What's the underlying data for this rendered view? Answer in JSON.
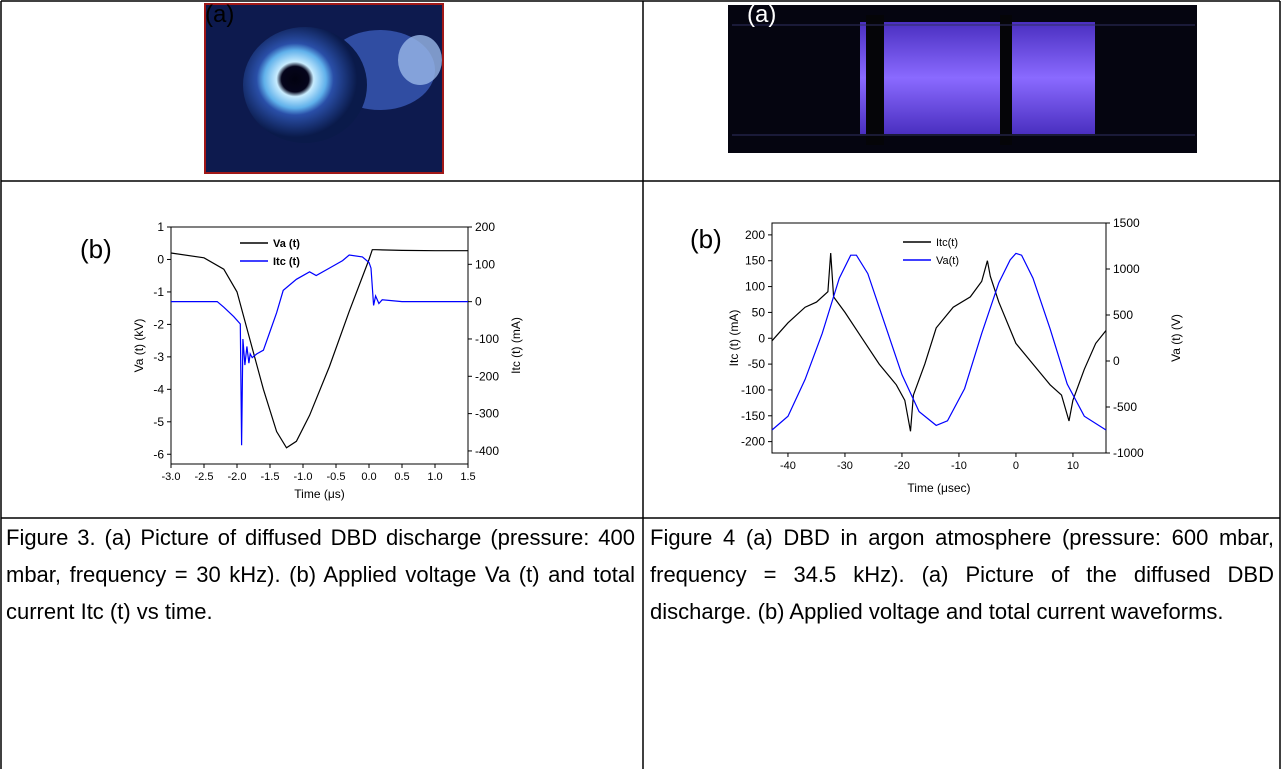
{
  "table": {
    "photo_labels": [
      "(a)",
      "(a)"
    ],
    "plot_labels": [
      "(b)",
      "(b)"
    ],
    "captions": [
      "Figure 3. (a) Picture of diffused DBD discharge (pressure: 400 mbar, frequency = 30 kHz). (b) Applied voltage Va (t) and total current Itc (t) vs time.",
      "Figure 4 (a) DBD in argon atmosphere (pressure: 600 mbar, frequency = 34.5 kHz). (a) Picture of the diffused DBD discharge. (b) Applied voltage and total current waveforms."
    ]
  },
  "chart_data": [
    {
      "type": "line",
      "x_label": "Time (μs)",
      "y_label": "Va (t) (kV)",
      "y2_label": "Itc (t) (mA)",
      "xlim": [
        -3,
        1.5
      ],
      "xticks": [
        {
          "value": -3,
          "label": "-3.0"
        },
        -2.5,
        {
          "value": -2,
          "label": "-2.0"
        },
        -1.5,
        {
          "value": -1,
          "label": "-1.0"
        },
        -0.5,
        {
          "value": 0,
          "label": "0.0"
        },
        0.5,
        {
          "value": 1,
          "label": "1.0"
        },
        1.5
      ],
      "ylim": [
        -6.3,
        1
      ],
      "yticks": [
        -6,
        -5,
        -4,
        -3,
        -2,
        -1,
        0,
        1
      ],
      "y2lim": [
        -435,
        200
      ],
      "y2ticks": [
        -400,
        -300,
        -200,
        -100,
        0,
        100,
        200
      ],
      "series": [
        {
          "name": "Va (t)",
          "color": "#000000",
          "x": [
            -3,
            -2.5,
            -2.2,
            -2,
            -1.8,
            -1.6,
            -1.4,
            -1.25,
            -1.1,
            -0.9,
            -0.6,
            -0.3,
            0,
            0.05,
            0.1,
            0.5,
            1,
            1.5
          ],
          "values": [
            0.2,
            0.05,
            -0.3,
            -1,
            -2.5,
            -4,
            -5.3,
            -5.8,
            -5.6,
            -4.8,
            -3.3,
            -1.6,
            0,
            0.3,
            0.3,
            0.28,
            0.27,
            0.27
          ]
        },
        {
          "name": "Itc (t)",
          "color": "#0000ff",
          "axis": "y2",
          "x": [
            -3,
            -2.3,
            -2.2,
            -2.05,
            -1.95,
            -1.93,
            -1.91,
            -1.88,
            -1.85,
            -1.82,
            -1.8,
            -1.77,
            -1.7,
            -1.6,
            -1.5,
            -1.4,
            -1.3,
            -1.1,
            -0.9,
            -0.8,
            -0.6,
            -0.4,
            -0.3,
            -0.1,
            0,
            0.03,
            0.07,
            0.1,
            0.15,
            0.2,
            0.5,
            1,
            1.5
          ],
          "values": [
            0,
            0,
            -15,
            -40,
            -60,
            -385,
            -100,
            -170,
            -120,
            -165,
            -140,
            -150,
            -140,
            -130,
            -80,
            -30,
            30,
            60,
            80,
            70,
            90,
            110,
            125,
            120,
            105,
            90,
            -10,
            15,
            -5,
            5,
            0,
            0,
            0
          ]
        }
      ]
    },
    {
      "type": "line",
      "x_label": "Time (μsec)",
      "y_label": "Itc (t) (mA)",
      "y2_label": "Va (t) (V)",
      "xlim": [
        -42.8,
        15.8
      ],
      "xticks": [
        -40,
        -30,
        -20,
        -10,
        0,
        10
      ],
      "ylim": [
        -222,
        223
      ],
      "yticks": [
        -200,
        -150,
        -100,
        -50,
        0,
        50,
        100,
        150,
        200
      ],
      "y2lim": [
        -1000,
        1500
      ],
      "y2ticks": [
        -1000,
        -500,
        0,
        500,
        1000,
        1500
      ],
      "series": [
        {
          "name": "Itc(t)",
          "color": "#000000",
          "x": [
            -42.8,
            -40,
            -37,
            -35,
            -33,
            -32.5,
            -32,
            -30,
            -27,
            -24,
            -21,
            -19.5,
            -18.5,
            -18,
            -16,
            -14,
            -11,
            -8,
            -6,
            -5,
            -4.5,
            -3,
            0,
            3,
            6,
            8,
            9.3,
            10,
            12,
            14,
            15.8
          ],
          "values": [
            -5,
            30,
            60,
            70,
            90,
            165,
            80,
            50,
            0,
            -50,
            -90,
            -120,
            -180,
            -110,
            -50,
            20,
            60,
            80,
            110,
            150,
            120,
            70,
            -10,
            -50,
            -90,
            -110,
            -160,
            -120,
            -60,
            -10,
            15
          ]
        },
        {
          "name": "Va(t)",
          "color": "#0000ff",
          "axis": "y2",
          "x": [
            -42.8,
            -40,
            -37,
            -34,
            -31,
            -29,
            -28,
            -26,
            -23,
            -20,
            -17,
            -14,
            -12,
            -9,
            -6,
            -3,
            -1,
            0,
            1,
            3,
            6,
            9,
            12,
            15.8
          ],
          "values": [
            -750,
            -600,
            -200,
            300,
            900,
            1150,
            1150,
            950,
            400,
            -150,
            -550,
            -700,
            -650,
            -300,
            300,
            850,
            1100,
            1170,
            1150,
            900,
            350,
            -250,
            -600,
            -750
          ]
        }
      ]
    }
  ]
}
